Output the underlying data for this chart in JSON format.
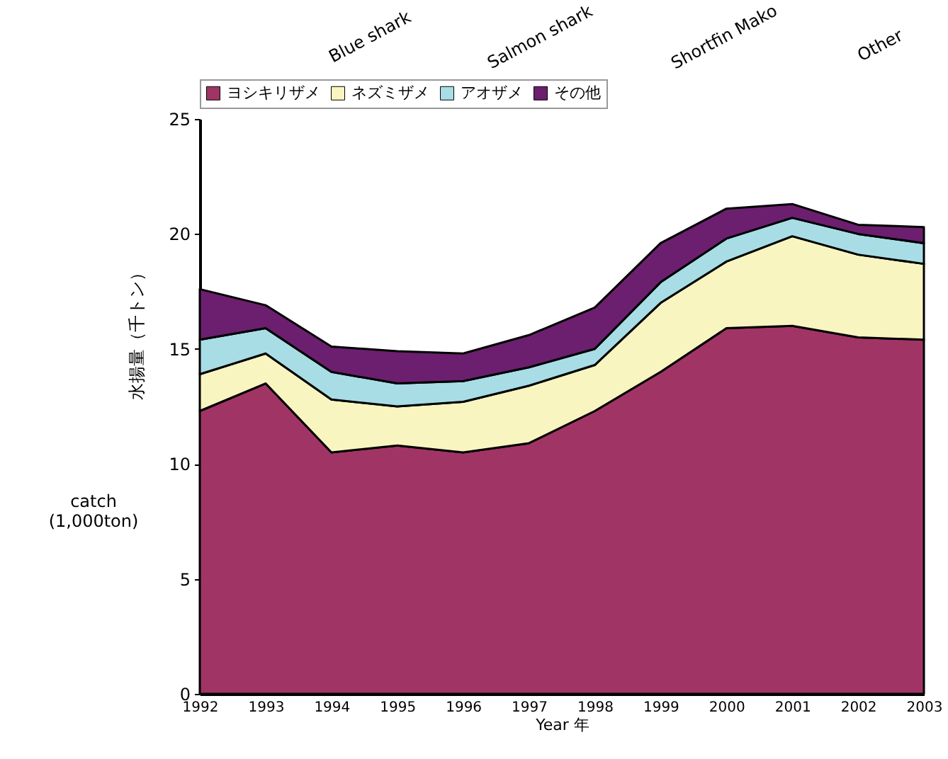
{
  "chart_data": {
    "type": "area",
    "stacked": true,
    "xlabel": "Year 年",
    "ylabel": "水揚量（千トン）",
    "annotations": [
      "Blue shark",
      "Salmon shark",
      "Shortfin Mako",
      "Other",
      "catch (1,000ton)"
    ],
    "x": [
      1992,
      1993,
      1994,
      1995,
      1996,
      1997,
      1998,
      1999,
      2000,
      2001,
      2002,
      2003
    ],
    "series": [
      {
        "name": "ヨシキリザメ",
        "color": "#a03565",
        "values": [
          12.3,
          13.5,
          10.5,
          10.8,
          10.5,
          10.9,
          12.3,
          14.0,
          15.9,
          16.0,
          15.5,
          15.4
        ]
      },
      {
        "name": "ネズミザメ",
        "color": "#f8f5c0",
        "values": [
          1.6,
          1.3,
          2.3,
          1.7,
          2.2,
          2.5,
          2.0,
          3.0,
          2.9,
          3.9,
          3.6,
          3.3
        ]
      },
      {
        "name": "アオザメ",
        "color": "#a8dde6",
        "values": [
          1.5,
          1.1,
          1.2,
          1.0,
          0.9,
          0.8,
          0.7,
          0.9,
          1.0,
          0.8,
          0.9,
          0.9
        ]
      },
      {
        "name": "その他",
        "color": "#6b1f6e",
        "values": [
          2.2,
          1.0,
          1.1,
          1.4,
          1.2,
          1.4,
          1.8,
          1.7,
          1.3,
          0.6,
          0.4,
          0.7
        ]
      }
    ],
    "xlim": [
      1992,
      2003
    ],
    "xticks": [
      1992,
      1993,
      1994,
      1995,
      1996,
      1997,
      1998,
      1999,
      2000,
      2001,
      2002,
      2003
    ],
    "ylim": [
      0,
      25
    ],
    "yticks": [
      0,
      5,
      10,
      15,
      20,
      25
    ],
    "legend": "top",
    "grid": false
  }
}
